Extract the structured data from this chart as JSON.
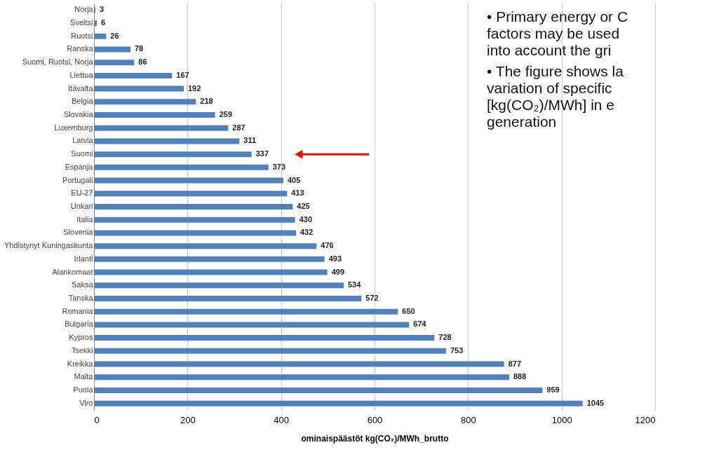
{
  "chart_data": {
    "type": "bar",
    "orientation": "horizontal",
    "categories": [
      "Norja",
      "Sveitsi",
      "Ruotsi",
      "Ranska",
      "Suomi, Ruotsi, Norja",
      "Liettua",
      "Itävalta",
      "Belgia",
      "Slovakia",
      "Luxemburg",
      "Latvia",
      "Suomi",
      "Espanja",
      "Portugali",
      "EU-27",
      "Unkari",
      "Italia",
      "Slovenia",
      "Yhdistynyt Kuningaskunta",
      "Irlanti",
      "Alankomaat",
      "Saksa",
      "Tanska",
      "Romania",
      "Bulgaria",
      "Kypros",
      "Tsekki",
      "Kreikka",
      "Malta",
      "Puola",
      "Viro"
    ],
    "values": [
      3,
      6,
      26,
      78,
      86,
      167,
      192,
      218,
      259,
      287,
      311,
      337,
      373,
      405,
      413,
      425,
      430,
      432,
      476,
      493,
      499,
      534,
      572,
      650,
      674,
      728,
      753,
      877,
      888,
      959,
      1045
    ],
    "color": "#4f81bd",
    "xlabel": "ominaispäästöt kg(CO₂)/MWh_brutto",
    "xlim": [
      0,
      1200
    ],
    "xticks": [
      0,
      200,
      400,
      600,
      800,
      1000,
      1200
    ],
    "grid": "x",
    "data_labels": true,
    "annotations": [
      "• Primary energy or C\n   factors may be used\n   into account the gri",
      "• The figure shows la\n   variation of specific\n   [kg(CO₂)/MWh] in e\n   generation"
    ]
  }
}
